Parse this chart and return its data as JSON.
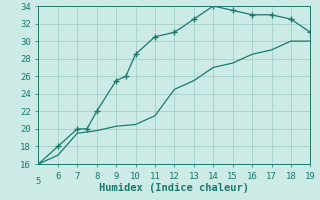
{
  "upper_x": [
    5,
    6,
    7,
    7.5,
    8,
    9,
    9.5,
    10,
    11,
    12,
    13,
    14,
    15,
    16,
    17,
    18,
    19
  ],
  "upper_y": [
    16,
    18,
    20,
    20,
    22,
    25.5,
    26,
    28.5,
    30.5,
    31,
    32.5,
    34,
    33.5,
    33,
    33,
    32.5,
    31
  ],
  "lower_x": [
    5,
    6,
    7,
    8,
    9,
    10,
    11,
    12,
    13,
    14,
    15,
    16,
    17,
    18,
    19
  ],
  "lower_y": [
    16,
    17,
    19.5,
    19.8,
    20.3,
    20.5,
    21.5,
    24.5,
    25.5,
    27,
    27.5,
    28.5,
    29,
    30,
    30
  ],
  "line_color": "#1a7a6e",
  "bg_color": "#cceae6",
  "grid_color": "#aad4cf",
  "xlabel": "Humidex (Indice chaleur)",
  "xlim": [
    5,
    19
  ],
  "ylim": [
    16,
    34
  ],
  "xticks": [
    6,
    7,
    8,
    9,
    10,
    11,
    12,
    13,
    14,
    15,
    16,
    17,
    18,
    19
  ],
  "yticks": [
    16,
    18,
    20,
    22,
    24,
    26,
    28,
    30,
    32,
    34
  ],
  "xlabel_fontsize": 7.5,
  "tick_fontsize": 6.5
}
